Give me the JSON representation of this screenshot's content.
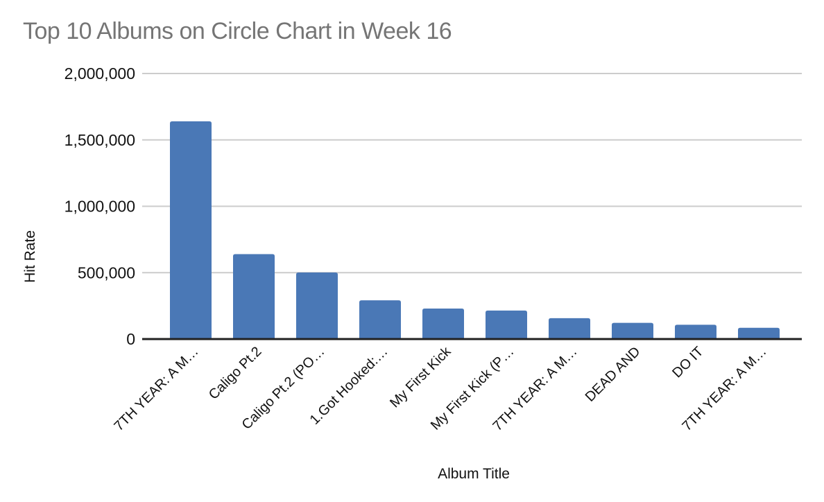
{
  "chart_data": {
    "type": "bar",
    "title": "Top 10 Albums on Circle Chart in Week 16",
    "xlabel": "Album Title",
    "ylabel": "Hit Rate",
    "categories": [
      "7TH YEAR: A M…",
      "Caligo Pt.2",
      "Caligo Pt.2 (PO…",
      "1.Got Hooked:…",
      "My First Kick",
      "My First Kick (P…",
      "7TH YEAR: A M…",
      "DEAD AND",
      "DO IT",
      "7TH YEAR: A M…"
    ],
    "values": [
      1640000,
      640000,
      501000,
      292000,
      230000,
      215000,
      157000,
      122000,
      108000,
      85000
    ],
    "ylim": [
      0,
      2000000
    ],
    "y_ticks": [
      {
        "value": 0,
        "label": "0"
      },
      {
        "value": 500000,
        "label": "500,000"
      },
      {
        "value": 1000000,
        "label": "1,000,000"
      },
      {
        "value": 1500000,
        "label": "1,500,000"
      },
      {
        "value": 2000000,
        "label": "2,000,000"
      }
    ],
    "grid": "horizontal",
    "legend": "none",
    "bar_color": "#4a78b6",
    "title_color": "#757575",
    "gridline_color": "#cccccc",
    "axis_color": "#212121",
    "label_color": "#111111"
  }
}
